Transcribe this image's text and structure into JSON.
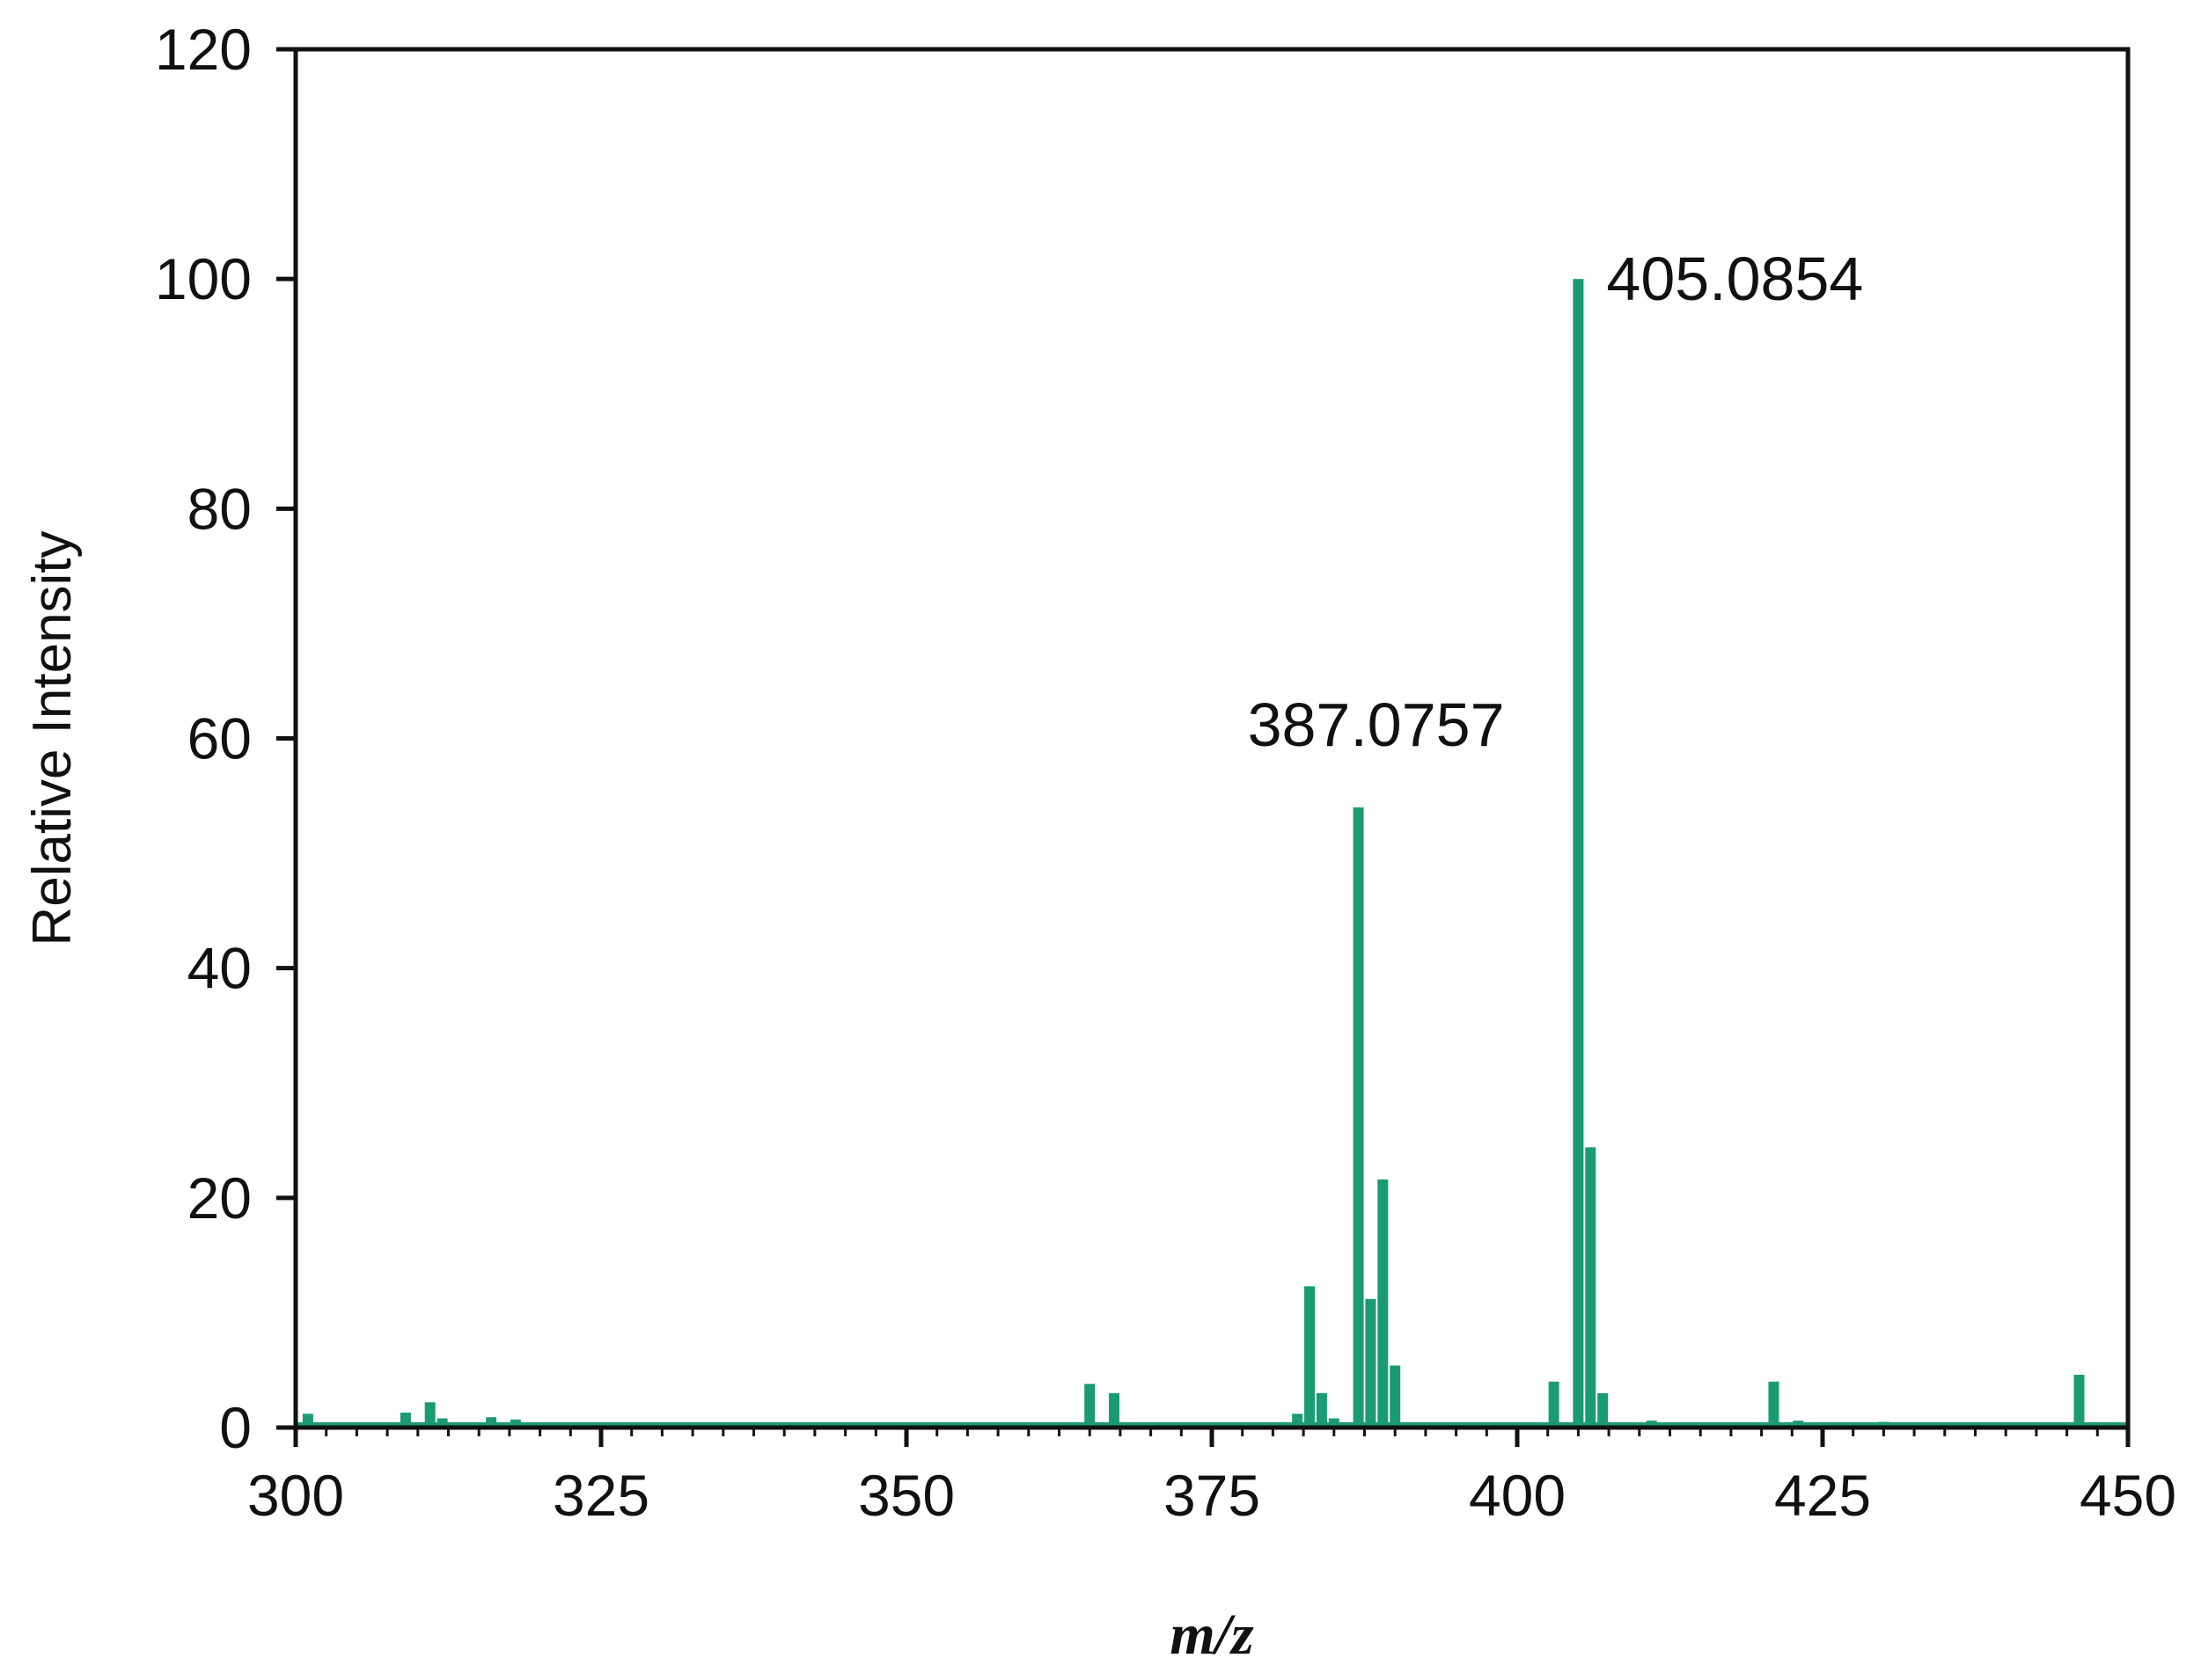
{
  "chart_data": {
    "type": "bar",
    "title": "",
    "xlabel": "m/z",
    "ylabel": "Relative Intensity",
    "xlim": [
      300,
      450
    ],
    "ylim": [
      0,
      120
    ],
    "xticks": [
      300,
      325,
      350,
      375,
      400,
      425,
      450
    ],
    "xtick_labels": [
      "300",
      "325",
      "350",
      "375",
      "400",
      "425",
      "450"
    ],
    "yticks": [
      0,
      20,
      40,
      60,
      80,
      100,
      120
    ],
    "ytick_labels": [
      "0",
      "20",
      "40",
      "60",
      "80",
      "100",
      "120"
    ],
    "x_minor_tick_step": 2.5,
    "grid": false,
    "color": "#1a9b74",
    "points": [
      {
        "x": 301,
        "y": 1.2
      },
      {
        "x": 309,
        "y": 1.3
      },
      {
        "x": 311,
        "y": 2.2
      },
      {
        "x": 312,
        "y": 0.8
      },
      {
        "x": 316,
        "y": 0.9
      },
      {
        "x": 318,
        "y": 0.7
      },
      {
        "x": 365,
        "y": 3.8
      },
      {
        "x": 367,
        "y": 3.0
      },
      {
        "x": 382,
        "y": 1.2
      },
      {
        "x": 383,
        "y": 12.3
      },
      {
        "x": 384,
        "y": 3.0
      },
      {
        "x": 385,
        "y": 0.8
      },
      {
        "x": 387,
        "y": 54.0
      },
      {
        "x": 388,
        "y": 11.2
      },
      {
        "x": 389,
        "y": 21.6
      },
      {
        "x": 390,
        "y": 5.4
      },
      {
        "x": 403,
        "y": 4.0
      },
      {
        "x": 405,
        "y": 100.0
      },
      {
        "x": 406,
        "y": 24.4
      },
      {
        "x": 407,
        "y": 3.0
      },
      {
        "x": 411,
        "y": 0.6
      },
      {
        "x": 421,
        "y": 4.0
      },
      {
        "x": 423,
        "y": 0.6
      },
      {
        "x": 430,
        "y": 0.5
      },
      {
        "x": 446,
        "y": 4.6
      }
    ],
    "annotations": [
      {
        "text": "405.0854",
        "x": 405,
        "y": 100
      },
      {
        "text": "387.0757",
        "x": 387,
        "y": 54
      }
    ]
  }
}
